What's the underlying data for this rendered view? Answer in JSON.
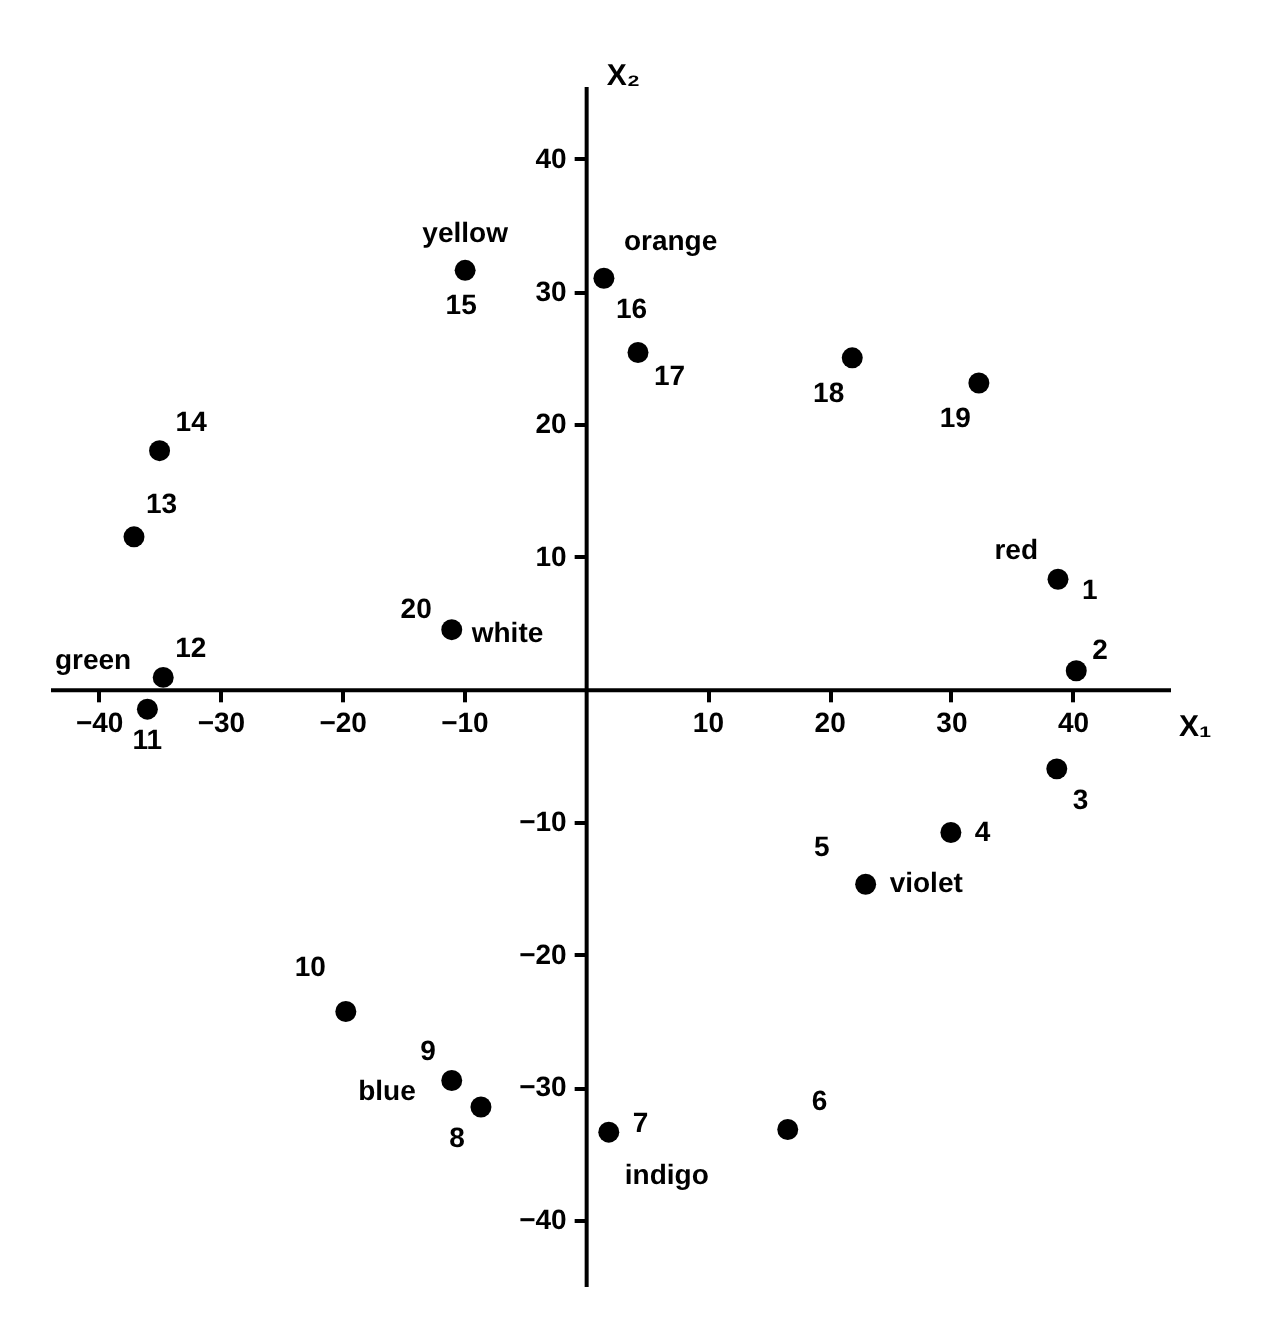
{
  "chart_data": {
    "type": "scatter",
    "xlabel": "X₁",
    "ylabel": "X₂",
    "x": [
      38.8,
      40.3,
      38.7,
      30.0,
      23.0,
      16.6,
      1.9,
      -8.6,
      -11.0,
      -19.7,
      -36.0,
      -34.7,
      -37.1,
      -35.0,
      -9.9,
      1.5,
      4.3,
      21.9,
      32.3,
      -11.0
    ],
    "series": [
      {
        "color": "#000000",
        "values": [
          8.3,
          1.4,
          -6.0,
          -10.8,
          -14.7,
          -33.2,
          -33.4,
          -31.5,
          -29.5,
          -24.3,
          -1.5,
          0.9,
          11.5,
          18.0,
          31.6,
          31.0,
          25.4,
          25.0,
          23.1,
          4.5
        ]
      }
    ],
    "xlim": [
      -44,
      48
    ],
    "ylim": [
      -45,
      45.5
    ],
    "xticks": [
      -40,
      -30,
      -20,
      -10,
      10,
      20,
      30,
      40
    ],
    "yticks": [
      -40,
      -30,
      -20,
      -10,
      10,
      20,
      30,
      40
    ],
    "grid": false,
    "marker": "circle",
    "annotations": [
      {
        "text": "1",
        "x": 38.8,
        "y": 8.3
      },
      {
        "text": "red",
        "x": 38.8,
        "y": 8.3
      },
      {
        "text": "2",
        "x": 40.3,
        "y": 1.4
      },
      {
        "text": "3",
        "x": 38.7,
        "y": -6.0
      },
      {
        "text": "4",
        "x": 30.0,
        "y": -10.8
      },
      {
        "text": "5",
        "x": 23.0,
        "y": -14.7
      },
      {
        "text": "violet",
        "x": 23.0,
        "y": -14.7
      },
      {
        "text": "6",
        "x": 16.6,
        "y": -33.2
      },
      {
        "text": "7",
        "x": 1.9,
        "y": -33.4
      },
      {
        "text": "indigo",
        "x": 1.9,
        "y": -33.4
      },
      {
        "text": "8",
        "x": -8.6,
        "y": -31.5
      },
      {
        "text": "9",
        "x": -11.0,
        "y": -29.5
      },
      {
        "text": "blue",
        "x": -11.0,
        "y": -29.5
      },
      {
        "text": "10",
        "x": -19.7,
        "y": -24.3
      },
      {
        "text": "11",
        "x": -36.0,
        "y": -1.5
      },
      {
        "text": "12",
        "x": -34.7,
        "y": 0.9
      },
      {
        "text": "green",
        "x": -34.7,
        "y": 0.9
      },
      {
        "text": "13",
        "x": -37.1,
        "y": 11.5
      },
      {
        "text": "14",
        "x": -35.0,
        "y": 18.0
      },
      {
        "text": "15",
        "x": -9.9,
        "y": 31.6
      },
      {
        "text": "yellow",
        "x": -9.9,
        "y": 31.6
      },
      {
        "text": "16",
        "x": 1.5,
        "y": 31.0
      },
      {
        "text": "orange",
        "x": 1.5,
        "y": 31.0
      },
      {
        "text": "17",
        "x": 4.3,
        "y": 25.4
      },
      {
        "text": "18",
        "x": 21.9,
        "y": 25.0
      },
      {
        "text": "19",
        "x": 32.3,
        "y": 23.1
      },
      {
        "text": "20",
        "x": -11.0,
        "y": 4.5
      },
      {
        "text": "white",
        "x": -11.0,
        "y": 4.5
      }
    ]
  }
}
